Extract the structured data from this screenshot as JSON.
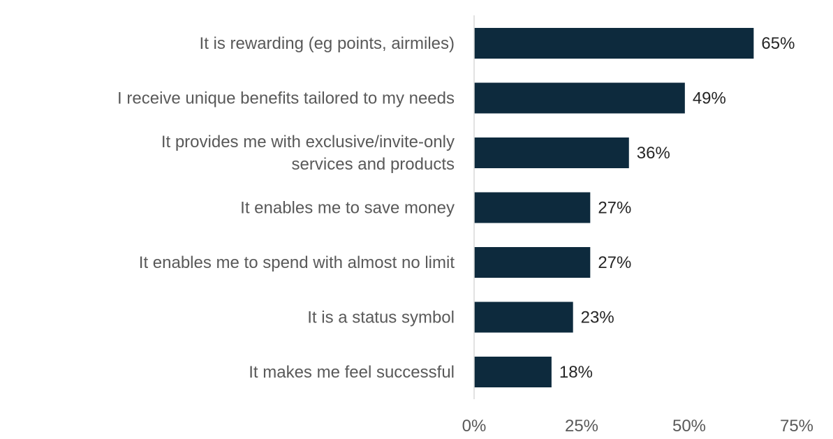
{
  "chart_data": {
    "type": "bar",
    "orientation": "horizontal",
    "categories": [
      [
        "It is rewarding (eg points, airmiles)"
      ],
      [
        "I receive unique benefits tailored to my needs"
      ],
      [
        "It provides me with exclusive/invite-only",
        "services and products"
      ],
      [
        "It enables me to save money"
      ],
      [
        "It enables me to spend with almost no limit"
      ],
      [
        "It is a status symbol"
      ],
      [
        "It makes me feel successful"
      ]
    ],
    "values": [
      65,
      49,
      36,
      27,
      27,
      23,
      18
    ],
    "data_labels": [
      "65%",
      "49%",
      "36%",
      "27%",
      "27%",
      "23%",
      "18%"
    ],
    "x_ticks": [
      0,
      25,
      50,
      75
    ],
    "x_tick_labels": [
      "0%",
      "25%",
      "50%",
      "75%"
    ],
    "xlim": [
      0,
      75
    ],
    "grid": false,
    "legend": "none",
    "bar_color": "#0d2a3d",
    "axis_color": "#d9d9d9"
  }
}
